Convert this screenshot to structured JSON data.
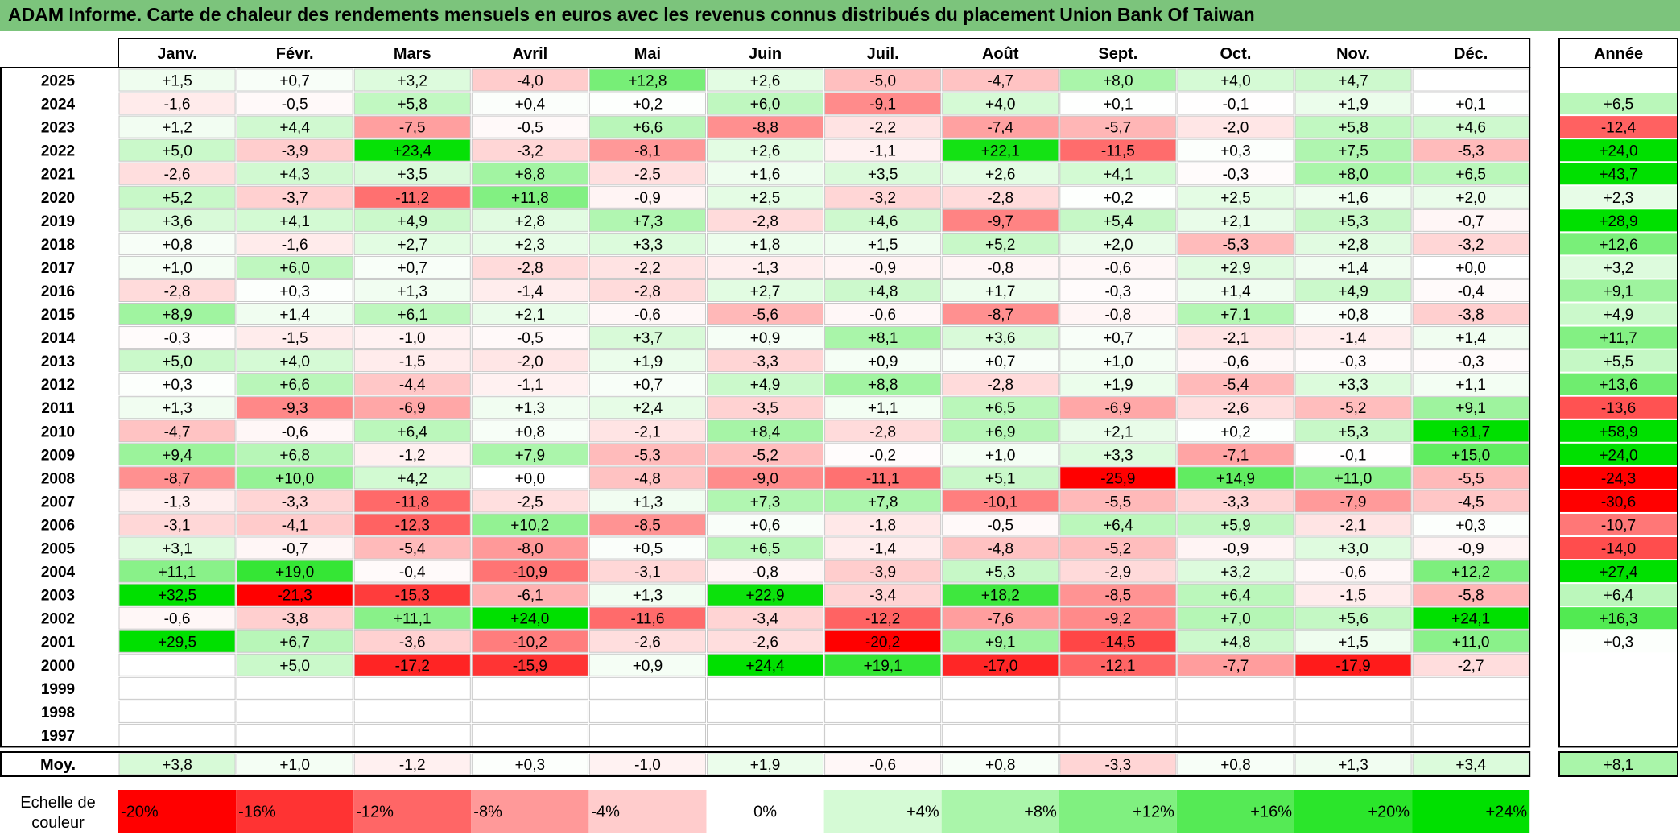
{
  "title": "ADAM Informe. Carte de chaleur des rendements mensuels en euros avec les revenus connus distribués du placement Union Bank Of Taiwan",
  "chart_data": {
    "type": "heatmap",
    "months": [
      "Janv.",
      "Févr.",
      "Mars",
      "Avril",
      "Mai",
      "Juin",
      "Juil.",
      "Août",
      "Sept.",
      "Oct.",
      "Nov.",
      "Déc."
    ],
    "year_header": "Année",
    "avg_label": "Moy.",
    "scale_label_line1": "Echelle de",
    "scale_label_line2": "couleur",
    "color_scale": {
      "min": -20,
      "max": 24,
      "neg_color": "#ff0000",
      "zero_color": "#ffffff",
      "pos_color": "#00e000"
    },
    "scale_ticks": [
      "-20%",
      "-16%",
      "-12%",
      "-8%",
      "-4%",
      "0%",
      "+4%",
      "+8%",
      "+12%",
      "+16%",
      "+20%",
      "+24%"
    ],
    "scale_values": [
      -20,
      -16,
      -12,
      -8,
      -4,
      0,
      4,
      8,
      12,
      16,
      20,
      24
    ],
    "years": [
      "2025",
      "2024",
      "2023",
      "2022",
      "2021",
      "2020",
      "2019",
      "2018",
      "2017",
      "2016",
      "2015",
      "2014",
      "2013",
      "2012",
      "2011",
      "2010",
      "2009",
      "2008",
      "2007",
      "2006",
      "2005",
      "2004",
      "2003",
      "2002",
      "2001",
      "2000",
      "1999",
      "1998",
      "1997"
    ],
    "values": [
      [
        1.5,
        0.7,
        3.2,
        -4.0,
        12.8,
        2.6,
        -5.0,
        -4.7,
        8.0,
        4.0,
        4.7,
        null
      ],
      [
        -1.6,
        -0.5,
        5.8,
        0.4,
        0.2,
        6.0,
        -9.1,
        4.0,
        0.1,
        -0.1,
        1.9,
        0.1
      ],
      [
        1.2,
        4.4,
        -7.5,
        -0.5,
        6.6,
        -8.8,
        -2.2,
        -7.4,
        -5.7,
        -2.0,
        5.8,
        4.6
      ],
      [
        5.0,
        -3.9,
        23.4,
        -3.2,
        -8.1,
        2.6,
        -1.1,
        22.1,
        -11.5,
        0.3,
        7.5,
        -5.3
      ],
      [
        -2.6,
        4.3,
        3.5,
        8.8,
        -2.5,
        1.6,
        3.5,
        2.6,
        4.1,
        -0.3,
        8.0,
        6.5
      ],
      [
        5.2,
        -3.7,
        -11.2,
        11.8,
        -0.9,
        2.5,
        -3.2,
        -2.8,
        0.2,
        2.5,
        1.6,
        2.0
      ],
      [
        3.6,
        4.1,
        4.9,
        2.8,
        7.3,
        -2.8,
        4.6,
        -9.7,
        5.4,
        2.1,
        5.3,
        -0.7
      ],
      [
        0.8,
        -1.6,
        2.7,
        2.3,
        3.3,
        1.8,
        1.5,
        5.2,
        2.0,
        -5.3,
        2.8,
        -3.2
      ],
      [
        1.0,
        6.0,
        0.7,
        -2.8,
        -2.2,
        -1.3,
        -0.9,
        -0.8,
        -0.6,
        2.9,
        1.4,
        0.0
      ],
      [
        -2.8,
        0.3,
        1.3,
        -1.4,
        -2.8,
        2.7,
        4.8,
        1.7,
        -0.3,
        1.4,
        4.9,
        -0.4
      ],
      [
        8.9,
        1.4,
        6.1,
        2.1,
        -0.6,
        -5.6,
        -0.6,
        -8.7,
        -0.8,
        7.1,
        0.8,
        -3.8
      ],
      [
        -0.3,
        -1.5,
        -1.0,
        -0.5,
        3.7,
        0.9,
        8.1,
        3.6,
        0.7,
        -2.1,
        -1.4,
        1.4
      ],
      [
        5.0,
        4.0,
        -1.5,
        -2.0,
        1.9,
        -3.3,
        0.9,
        0.7,
        1.0,
        -0.6,
        -0.3,
        -0.3
      ],
      [
        0.3,
        6.6,
        -4.4,
        -1.1,
        0.7,
        4.9,
        8.8,
        -2.8,
        1.9,
        -5.4,
        3.3,
        1.1
      ],
      [
        1.3,
        -9.3,
        -6.9,
        1.3,
        2.4,
        -3.5,
        1.1,
        6.5,
        -6.9,
        -2.6,
        -5.2,
        9.1
      ],
      [
        -4.7,
        -0.6,
        6.4,
        0.8,
        -2.1,
        8.4,
        -2.8,
        6.9,
        2.1,
        0.2,
        5.3,
        31.7
      ],
      [
        9.4,
        6.8,
        -1.2,
        7.9,
        -5.3,
        -5.2,
        -0.2,
        1.0,
        3.3,
        -7.1,
        -0.1,
        15.0
      ],
      [
        -8.7,
        10.0,
        4.2,
        0.0,
        -4.8,
        -9.0,
        -11.1,
        5.1,
        -25.9,
        14.9,
        11.0,
        -5.5
      ],
      [
        -1.3,
        -3.3,
        -11.8,
        -2.5,
        1.3,
        7.3,
        7.8,
        -10.1,
        -5.5,
        -3.3,
        -7.9,
        -4.5
      ],
      [
        -3.1,
        -4.1,
        -12.3,
        10.2,
        -8.5,
        0.6,
        -1.8,
        -0.5,
        6.4,
        5.9,
        -2.1,
        0.3
      ],
      [
        3.1,
        -0.7,
        -5.4,
        -8.0,
        0.5,
        6.5,
        -1.4,
        -4.8,
        -5.2,
        -0.9,
        3.0,
        -0.9
      ],
      [
        11.1,
        19.0,
        -0.4,
        -10.9,
        -3.1,
        -0.8,
        -3.9,
        5.3,
        -2.9,
        3.2,
        -0.6,
        12.2
      ],
      [
        32.5,
        -21.3,
        -15.3,
        -6.1,
        1.3,
        22.9,
        -3.4,
        18.2,
        -8.5,
        6.4,
        -1.5,
        -5.8
      ],
      [
        -0.6,
        -3.8,
        11.1,
        24.0,
        -11.6,
        -3.4,
        -12.2,
        -7.6,
        -9.2,
        7.0,
        5.6,
        24.1
      ],
      [
        29.5,
        6.7,
        -3.6,
        -10.2,
        -2.6,
        -2.6,
        -20.2,
        9.1,
        -14.5,
        4.8,
        1.5,
        11.0
      ],
      [
        null,
        5.0,
        -17.2,
        -15.9,
        0.9,
        24.4,
        19.1,
        -17.0,
        -12.1,
        -7.7,
        -17.9,
        -2.7
      ],
      [
        null,
        null,
        null,
        null,
        null,
        null,
        null,
        null,
        null,
        null,
        null,
        null
      ],
      [
        null,
        null,
        null,
        null,
        null,
        null,
        null,
        null,
        null,
        null,
        null,
        null
      ],
      [
        null,
        null,
        null,
        null,
        null,
        null,
        null,
        null,
        null,
        null,
        null,
        null
      ]
    ],
    "annual": [
      null,
      6.5,
      -12.4,
      24.0,
      43.7,
      2.3,
      28.9,
      12.6,
      3.2,
      9.1,
      4.9,
      11.7,
      5.5,
      13.6,
      -13.6,
      58.9,
      24.0,
      -24.3,
      -30.6,
      -10.7,
      -14.0,
      27.4,
      6.4,
      16.3,
      0.3,
      null,
      null,
      null,
      null
    ],
    "monthly_avg": [
      3.8,
      1.0,
      -1.2,
      0.3,
      -1.0,
      1.9,
      -0.6,
      0.8,
      -3.3,
      0.8,
      1.3,
      3.4
    ],
    "annual_avg": 8.1
  }
}
